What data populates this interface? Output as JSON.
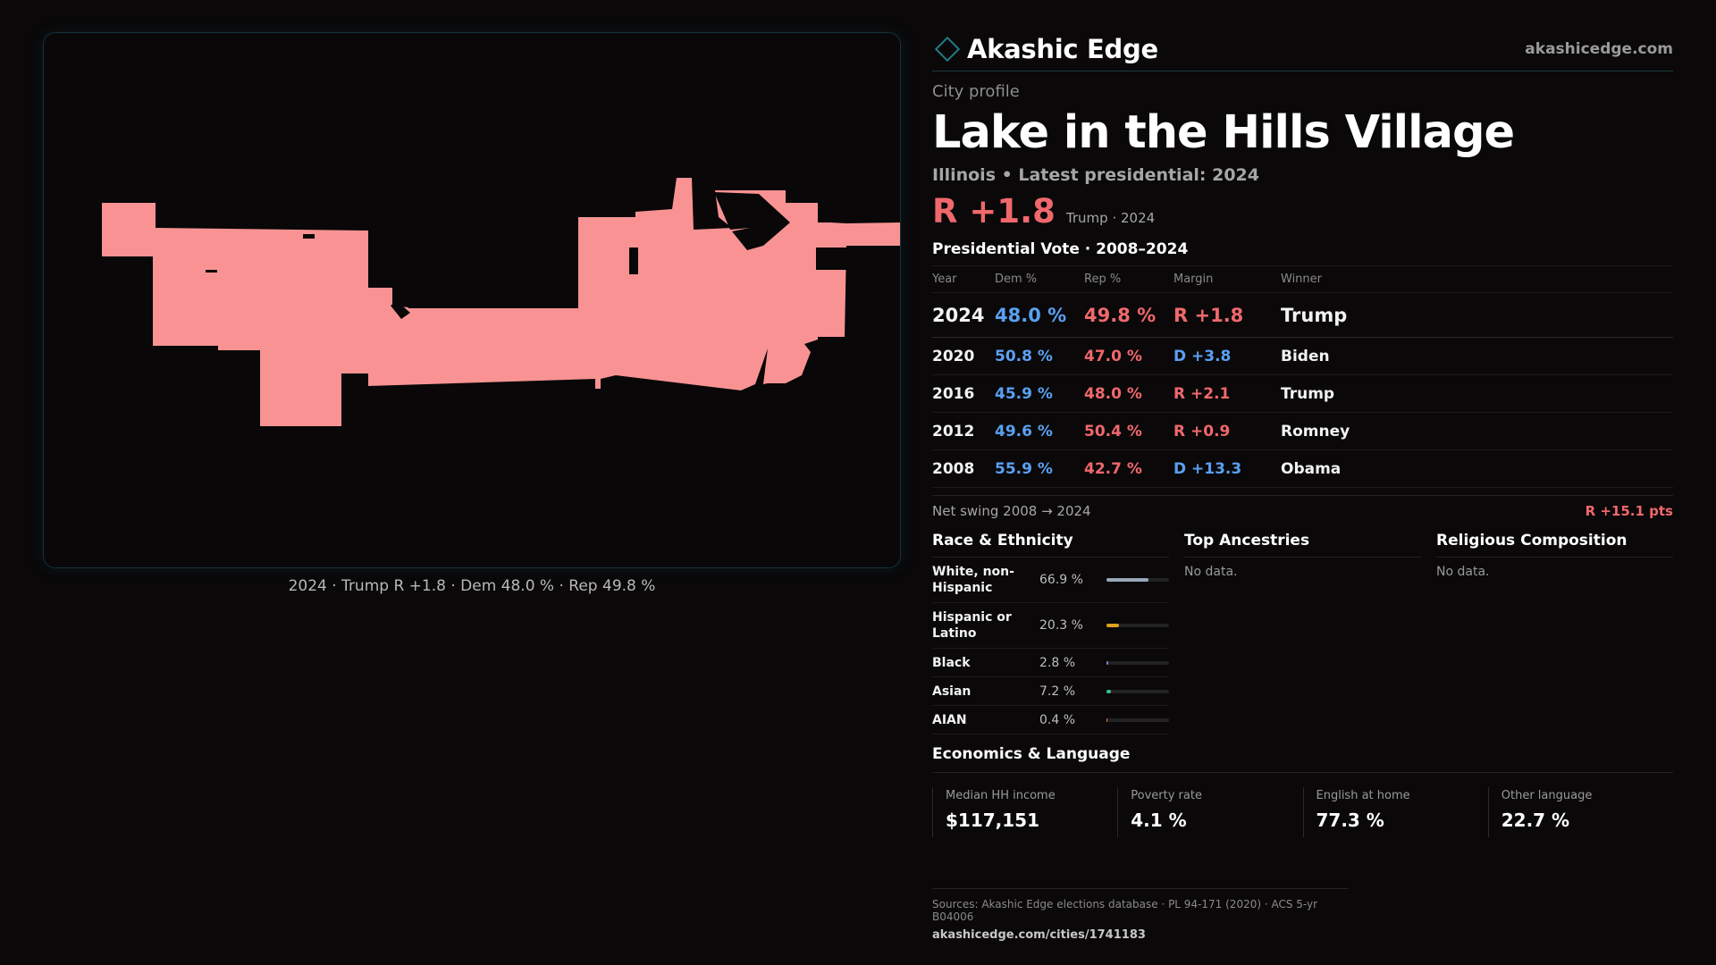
{
  "brand": {
    "name": "Akashic Edge",
    "site": "akashicedge.com",
    "icon": "diamond-logo-icon"
  },
  "profile": {
    "kicker": "City profile",
    "title": "Lake in the Hills Village",
    "subtitle": "Illinois • Latest presidential: 2024",
    "margin_big": "R +1.8",
    "margin_note": "Trump · 2024"
  },
  "map": {
    "caption": "2024 · Trump R +1.8 · Dem 48.0 % · Rep 49.8 %",
    "fill_color": "#f99393"
  },
  "votes": {
    "title": "Presidential Vote · 2008–2024",
    "headers": {
      "year": "Year",
      "dem": "Dem %",
      "rep": "Rep %",
      "margin": "Margin",
      "winner": "Winner"
    },
    "rows": [
      {
        "year": "2024",
        "dem": "48.0 %",
        "rep": "49.8 %",
        "margin": "R +1.8",
        "party": "rep",
        "winner": "Trump"
      },
      {
        "year": "2020",
        "dem": "50.8 %",
        "rep": "47.0 %",
        "margin": "D +3.8",
        "party": "dem",
        "winner": "Biden"
      },
      {
        "year": "2016",
        "dem": "45.9 %",
        "rep": "48.0 %",
        "margin": "R +2.1",
        "party": "rep",
        "winner": "Trump"
      },
      {
        "year": "2012",
        "dem": "49.6 %",
        "rep": "50.4 %",
        "margin": "R +0.9",
        "party": "rep",
        "winner": "Romney"
      },
      {
        "year": "2008",
        "dem": "55.9 %",
        "rep": "42.7 %",
        "margin": "D +13.3",
        "party": "dem",
        "winner": "Obama"
      }
    ],
    "swing_label": "Net swing 2008 → 2024",
    "swing_value": "R +15.1 pts"
  },
  "race": {
    "title": "Race & Ethnicity",
    "items": [
      {
        "label": "White, non-Hispanic",
        "pct": "66.9 %",
        "value": 66.9,
        "color": "#9aa6b8"
      },
      {
        "label": "Hispanic or Latino",
        "pct": "20.3 %",
        "value": 20.3,
        "color": "#e0a020"
      },
      {
        "label": "Black",
        "pct": "2.8 %",
        "value": 2.8,
        "color": "#8a78e0"
      },
      {
        "label": "Asian",
        "pct": "7.2 %",
        "value": 7.2,
        "color": "#3cc08a"
      },
      {
        "label": "AIAN",
        "pct": "0.4 %",
        "value": 0.4,
        "color": "#e07a3a"
      }
    ]
  },
  "ancestries": {
    "title": "Top Ancestries",
    "empty": "No data."
  },
  "religion": {
    "title": "Religious Composition",
    "empty": "No data."
  },
  "economics": {
    "title": "Economics & Language",
    "cells": [
      {
        "label": "Median HH income",
        "value": "$117,151"
      },
      {
        "label": "Poverty rate",
        "value": "4.1 %"
      },
      {
        "label": "English at home",
        "value": "77.3 %"
      },
      {
        "label": "Other language",
        "value": "22.7 %"
      }
    ]
  },
  "footer": {
    "sources": "Sources: Akashic Edge elections database · PL 94-171 (2020) · ACS 5-yr B04006",
    "url": "akashicedge.com/cities/1741183"
  }
}
